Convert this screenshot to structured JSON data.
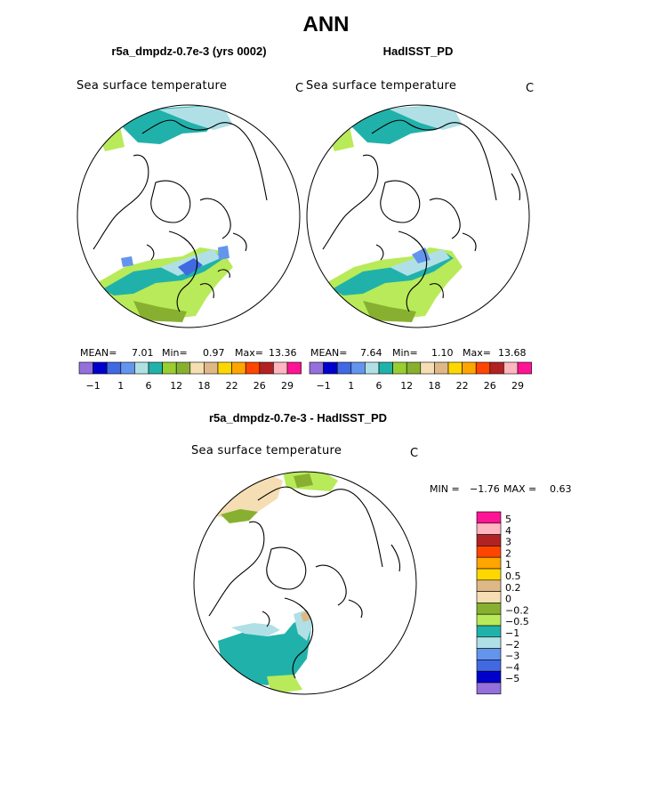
{
  "page": {
    "title": "ANN"
  },
  "panels": [
    {
      "title": "r5a_dmpdz-0.7e-3 (yrs 0002)",
      "variable": "Sea surface temperature",
      "units": "C",
      "stats": {
        "mean_label": "MEAN=",
        "mean": "7.01",
        "min_label": "Min=",
        "min": "0.97",
        "max_label": "Max=",
        "max": "13.36"
      }
    },
    {
      "title": "HadISST_PD",
      "variable": "Sea surface temperature",
      "units": "C",
      "stats": {
        "mean_label": "MEAN=",
        "mean": "7.64",
        "min_label": "Min=",
        "min": "1.10",
        "max_label": "Max=",
        "max": "13.68"
      }
    }
  ],
  "difference": {
    "title": "r5a_dmpdz-0.7e-3 - HadISST_PD",
    "variable": "Sea surface temperature",
    "units": "C",
    "min_label": "MIN =",
    "min": "−1.76",
    "max_label": "MAX =",
    "max": "0.63"
  },
  "chart_data": [
    {
      "type": "heatmap",
      "projection": "north polar stereographic",
      "title": "r5a_dmpdz-0.7e-3 (yrs 0002)",
      "colorbar": {
        "colors": [
          "#9370db",
          "#0000cd",
          "#4169e1",
          "#6495ed",
          "#b0e0e6",
          "#20b2aa",
          "#9acd32",
          "#88b030",
          "#f5deb3",
          "#deb887",
          "#ffd700",
          "#ffa500",
          "#ff4500",
          "#b22222",
          "#ffb6c1",
          "#ff1493"
        ],
        "tick_labels": [
          "−1",
          "1",
          "6",
          "12",
          "18",
          "22",
          "26",
          "29"
        ]
      },
      "mean": 7.01,
      "min": 0.97,
      "max": 13.36
    },
    {
      "type": "heatmap",
      "projection": "north polar stereographic",
      "title": "HadISST_PD",
      "colorbar": {
        "colors": [
          "#9370db",
          "#0000cd",
          "#4169e1",
          "#6495ed",
          "#b0e0e6",
          "#20b2aa",
          "#9acd32",
          "#88b030",
          "#f5deb3",
          "#deb887",
          "#ffd700",
          "#ffa500",
          "#ff4500",
          "#b22222",
          "#ffb6c1",
          "#ff1493"
        ],
        "tick_labels": [
          "−1",
          "1",
          "6",
          "12",
          "18",
          "22",
          "26",
          "29"
        ]
      },
      "mean": 7.64,
      "min": 1.1,
      "max": 13.68
    },
    {
      "type": "heatmap",
      "projection": "north polar stereographic",
      "title": "r5a_dmpdz-0.7e-3 - HadISST_PD",
      "min": -1.76,
      "max": 0.63,
      "legend": [
        {
          "label": "5",
          "color": "#ff1493"
        },
        {
          "label": "4",
          "color": "#ffb6c1"
        },
        {
          "label": "3",
          "color": "#b22222"
        },
        {
          "label": "2",
          "color": "#ff4500"
        },
        {
          "label": "1",
          "color": "#ffa500"
        },
        {
          "label": "0.5",
          "color": "#ffd700"
        },
        {
          "label": "0.2",
          "color": "#deb887"
        },
        {
          "label": "0",
          "color": "#f5deb3"
        },
        {
          "label": "−0.2",
          "color": "#88b030"
        },
        {
          "label": "−0.5",
          "color": "#b9ea59"
        },
        {
          "label": "−1",
          "color": "#20b2aa"
        },
        {
          "label": "−2",
          "color": "#b0e0e6"
        },
        {
          "label": "−3",
          "color": "#6495ed"
        },
        {
          "label": "−4",
          "color": "#4169e1"
        },
        {
          "label": "−5",
          "color": "#0000cd"
        },
        {
          "label": "",
          "color": "#9370db"
        }
      ]
    }
  ]
}
